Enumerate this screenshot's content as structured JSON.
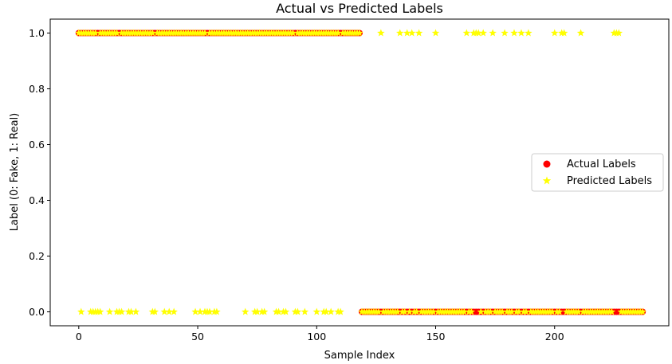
{
  "chart_data": {
    "type": "scatter",
    "title": "Actual vs Predicted Labels",
    "xlabel": "Sample Index",
    "ylabel": "Label (0: Fake, 1: Real)",
    "xlim": [
      -12,
      248
    ],
    "ylim": [
      -0.05,
      1.05
    ],
    "xticks": [
      0,
      50,
      100,
      150,
      200
    ],
    "yticks": [
      0.0,
      0.2,
      0.4,
      0.6,
      0.8,
      1.0
    ],
    "xtick_labels": [
      "0",
      "50",
      "100",
      "150",
      "200"
    ],
    "ytick_labels": [
      "0.0",
      "0.2",
      "0.4",
      "0.6",
      "0.8",
      "1.0"
    ],
    "grid": false,
    "legend_position": "center-right",
    "series": [
      {
        "name": "Actual Labels",
        "marker": "circle",
        "color": "#ff0000",
        "segments": [
          {
            "from": 0,
            "to": 118,
            "y": 1
          },
          {
            "from": 119,
            "to": 237,
            "y": 0
          }
        ]
      },
      {
        "name": "Predicted Labels",
        "marker": "star",
        "color": "#ffff00",
        "points_y1": [
          0,
          1,
          2,
          3,
          4,
          5,
          6,
          7,
          9,
          10,
          11,
          12,
          13,
          14,
          15,
          16,
          18,
          19,
          20,
          21,
          22,
          23,
          24,
          25,
          26,
          27,
          28,
          29,
          30,
          31,
          33,
          34,
          35,
          36,
          37,
          38,
          39,
          40,
          41,
          42,
          43,
          44,
          45,
          46,
          47,
          48,
          49,
          50,
          51,
          52,
          53,
          55,
          56,
          57,
          58,
          59,
          60,
          61,
          62,
          63,
          64,
          65,
          66,
          67,
          68,
          69,
          70,
          71,
          72,
          73,
          74,
          75,
          76,
          77,
          78,
          79,
          80,
          81,
          82,
          83,
          84,
          85,
          86,
          87,
          88,
          89,
          90,
          92,
          93,
          94,
          95,
          96,
          97,
          98,
          99,
          100,
          101,
          102,
          103,
          104,
          105,
          106,
          107,
          108,
          109,
          111,
          112,
          113,
          114,
          115,
          116,
          117,
          118,
          127,
          135,
          138,
          140,
          143,
          150,
          163,
          166,
          167,
          168,
          170,
          174,
          179,
          183,
          186,
          189,
          200,
          203,
          204,
          211,
          225,
          226,
          227
        ],
        "points_y0": [
          1,
          5,
          6,
          7,
          8,
          9,
          13,
          16,
          17,
          18,
          21,
          22,
          24,
          31,
          32,
          36,
          38,
          40,
          49,
          51,
          53,
          54,
          55,
          57,
          58,
          70,
          74,
          75,
          77,
          78,
          83,
          84,
          86,
          87,
          91,
          92,
          95,
          100,
          103,
          104,
          106,
          109,
          110,
          119,
          120,
          121,
          122,
          123,
          124,
          125,
          126,
          128,
          129,
          130,
          131,
          132,
          133,
          134,
          136,
          137,
          139,
          141,
          142,
          144,
          145,
          146,
          147,
          148,
          149,
          151,
          152,
          153,
          154,
          155,
          156,
          157,
          158,
          159,
          160,
          161,
          162,
          164,
          165,
          169,
          171,
          172,
          173,
          175,
          176,
          177,
          178,
          180,
          181,
          182,
          184,
          185,
          187,
          188,
          190,
          191,
          192,
          193,
          194,
          195,
          196,
          197,
          198,
          199,
          201,
          202,
          205,
          206,
          207,
          208,
          209,
          210,
          212,
          213,
          214,
          215,
          216,
          217,
          218,
          219,
          220,
          221,
          222,
          223,
          224,
          228,
          229,
          230,
          231,
          232,
          233,
          234,
          235,
          236,
          237
        ]
      }
    ]
  }
}
